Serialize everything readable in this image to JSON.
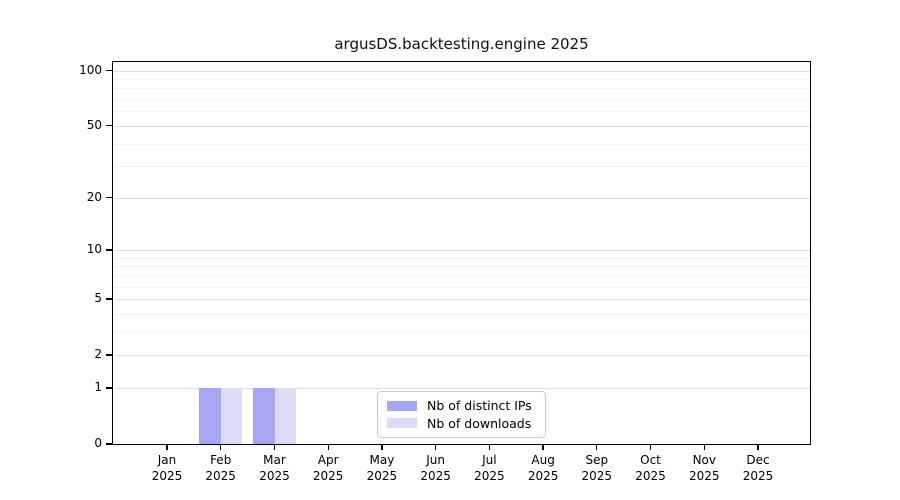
{
  "title": "argusDS.backtesting.engine 2025",
  "chart_data": {
    "type": "bar",
    "title": "argusDS.backtesting.engine 2025",
    "categories": [
      "Jan",
      "Feb",
      "Mar",
      "Apr",
      "May",
      "Jun",
      "Jul",
      "Aug",
      "Sep",
      "Oct",
      "Nov",
      "Dec"
    ],
    "x_year_label": "2025",
    "series": [
      {
        "name": "Nb of distinct IPs",
        "color": "#a6a6f2",
        "values": [
          0,
          1,
          1,
          0,
          0,
          0,
          0,
          0,
          0,
          0,
          0,
          0
        ]
      },
      {
        "name": "Nb of downloads",
        "color": "#dcdcf8",
        "values": [
          0,
          1,
          1,
          0,
          0,
          0,
          0,
          0,
          0,
          0,
          0,
          0
        ]
      }
    ],
    "y_scale": "log1p",
    "y_major_ticks": [
      0,
      1,
      2,
      5,
      10,
      20,
      50,
      100
    ],
    "y_minor_ticks": [
      3,
      4,
      6,
      7,
      8,
      9,
      30,
      40,
      60,
      70,
      80,
      90
    ],
    "ylim": [
      0,
      110
    ],
    "xlabel": "",
    "ylabel": "",
    "grid": "horizontal",
    "legend_position": "lower center"
  },
  "colors": {
    "series_1": "#a6a6f2",
    "series_2": "#dcdcf8",
    "grid_major": "#dcdcdc",
    "grid_minor": "#f2f2f2",
    "spine": "#000000",
    "background": "#ffffff"
  }
}
